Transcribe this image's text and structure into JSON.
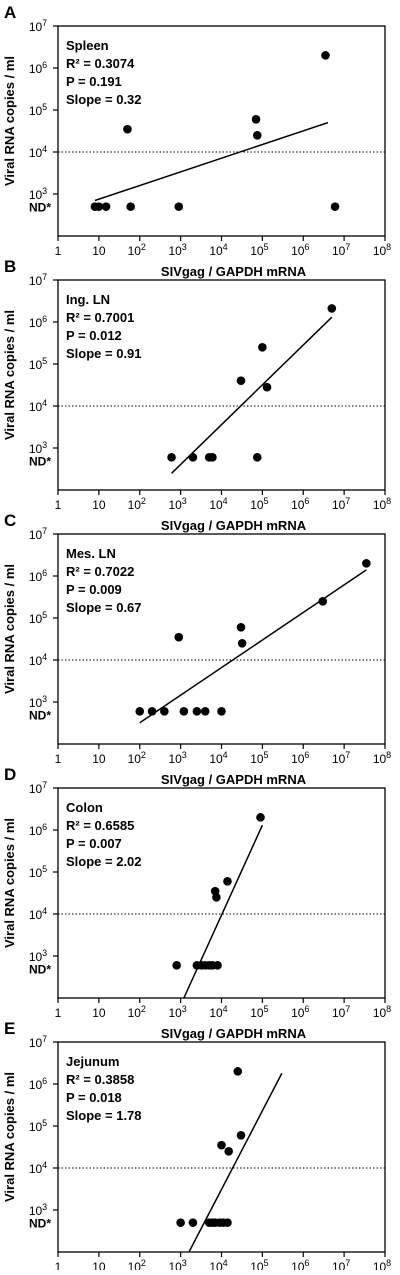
{
  "chart_data": [
    {
      "type": "scatter",
      "panel": "A",
      "tissue": "Spleen",
      "stats": [
        "R² = 0.3074",
        "P = 0.191",
        "Slope = 0.32"
      ],
      "xlabel": "SIVgag / GAPDH mRNA",
      "ylabel": "Viral RNA copies / ml",
      "x_scale": "log",
      "y_scale": "log",
      "xlim": [
        1,
        100000000
      ],
      "ylim": [
        100,
        10000000
      ],
      "threshold_y": 10000,
      "nd_label": "ND*",
      "nd_y": 500,
      "points": [
        [
          8,
          500
        ],
        [
          10,
          500
        ],
        [
          15,
          500
        ],
        [
          50,
          35000
        ],
        [
          60,
          500
        ],
        [
          900,
          500
        ],
        [
          70000,
          60000
        ],
        [
          75000,
          25000
        ],
        [
          3500000,
          2000000
        ],
        [
          6000000,
          500
        ]
      ],
      "fit": [
        [
          8,
          700
        ],
        [
          4000000,
          50000
        ]
      ]
    },
    {
      "type": "scatter",
      "panel": "B",
      "tissue": "Ing. LN",
      "stats": [
        "R² = 0.7001",
        "P = 0.012",
        "Slope = 0.91"
      ],
      "xlabel": "SIVgag / GAPDH mRNA",
      "ylabel": "Viral RNA copies / ml",
      "x_scale": "log",
      "y_scale": "log",
      "xlim": [
        1,
        100000000
      ],
      "ylim": [
        100,
        10000000
      ],
      "threshold_y": 10000,
      "nd_label": "ND*",
      "points": [
        [
          600,
          600
        ],
        [
          2000,
          600
        ],
        [
          5000,
          600
        ],
        [
          6000,
          600
        ],
        [
          30000,
          40000
        ],
        [
          75000,
          600
        ],
        [
          100000,
          250000
        ],
        [
          130000,
          28000
        ],
        [
          5000000,
          2100000
        ]
      ],
      "fit": [
        [
          600,
          250
        ],
        [
          5000000,
          1300000
        ]
      ]
    },
    {
      "type": "scatter",
      "panel": "C",
      "tissue": "Mes. LN",
      "stats": [
        "R² = 0.7022",
        "P = 0.009",
        "Slope = 0.67"
      ],
      "xlabel": "SIVgag / GAPDH mRNA",
      "ylabel": "Viral RNA copies / ml",
      "x_scale": "log",
      "y_scale": "log",
      "xlim": [
        1,
        100000000
      ],
      "ylim": [
        100,
        10000000
      ],
      "threshold_y": 10000,
      "nd_label": "ND*",
      "points": [
        [
          100,
          600
        ],
        [
          200,
          600
        ],
        [
          400,
          600
        ],
        [
          900,
          35000
        ],
        [
          1200,
          600
        ],
        [
          2500,
          600
        ],
        [
          4000,
          600
        ],
        [
          10000,
          600
        ],
        [
          30000,
          60000
        ],
        [
          32000,
          25000
        ],
        [
          3000000,
          250000
        ],
        [
          35000000,
          2000000
        ]
      ],
      "fit": [
        [
          100,
          320
        ],
        [
          35000000,
          1400000
        ]
      ]
    },
    {
      "type": "scatter",
      "panel": "D",
      "tissue": "Colon",
      "stats": [
        "R² = 0.6585",
        "P = 0.007",
        "Slope = 2.02"
      ],
      "xlabel": "SIVgag / GAPDH mRNA",
      "ylabel": "Viral RNA copies / ml",
      "x_scale": "log",
      "y_scale": "log",
      "xlim": [
        1,
        100000000
      ],
      "ylim": [
        100,
        10000000
      ],
      "threshold_y": 10000,
      "nd_label": "ND*",
      "points": [
        [
          800,
          600
        ],
        [
          2500,
          600
        ],
        [
          3200,
          600
        ],
        [
          4000,
          600
        ],
        [
          5000,
          600
        ],
        [
          6000,
          600
        ],
        [
          7000,
          35000
        ],
        [
          7500,
          25000
        ],
        [
          8000,
          600
        ],
        [
          14000,
          60000
        ],
        [
          90000,
          2000000
        ]
      ],
      "fit": [
        [
          1200,
          100
        ],
        [
          100000,
          1300000
        ]
      ]
    },
    {
      "type": "scatter",
      "panel": "E",
      "tissue": "Jejunum",
      "stats": [
        "R² = 0.3858",
        "P = 0.018",
        "Slope = 1.78"
      ],
      "xlabel": "SIVgag / GAPDH mRNA",
      "ylabel": "Viral RNA copies / ml",
      "x_scale": "log",
      "y_scale": "log",
      "xlim": [
        1,
        100000000
      ],
      "ylim": [
        100,
        10000000
      ],
      "threshold_y": 10000,
      "nd_label": "ND*",
      "points": [
        [
          1000,
          500
        ],
        [
          2000,
          500
        ],
        [
          5000,
          500
        ],
        [
          6000,
          500
        ],
        [
          7000,
          500
        ],
        [
          9000,
          500
        ],
        [
          10000,
          35000
        ],
        [
          11000,
          500
        ],
        [
          14000,
          500
        ],
        [
          15000,
          25000
        ],
        [
          25000,
          2000000
        ],
        [
          30000,
          60000
        ]
      ],
      "fit": [
        [
          1600,
          100
        ],
        [
          300000,
          1800000
        ]
      ]
    }
  ]
}
